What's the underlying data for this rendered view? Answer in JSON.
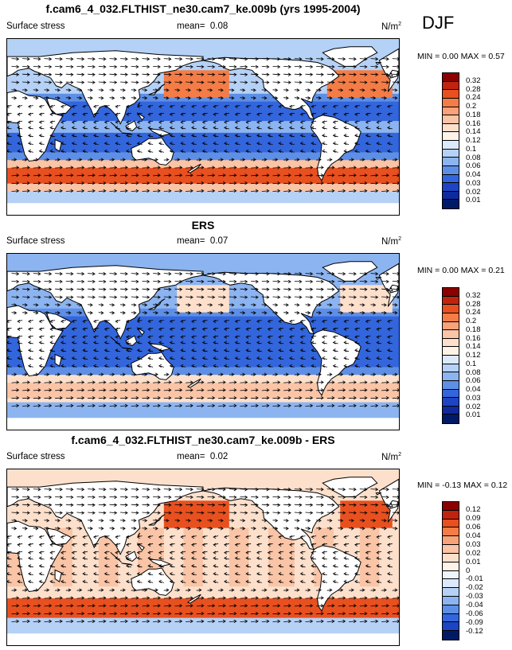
{
  "season": "DJF",
  "panels": [
    {
      "title": "f.cam6_4_032.FLTHIST_ne30.cam7_ke.009b (yrs 1995-2004)",
      "variable": "Surface stress",
      "mean_label": "mean=",
      "mean_value": "0.08",
      "units": "N/m",
      "units_exp": "2",
      "min_label": "MIN =",
      "min_value": "0.00",
      "max_label": "MAX =",
      "max_value": "0.57",
      "colorbar": {
        "labels": [
          "0.32",
          "0.28",
          "0.24",
          "0.2",
          "0.18",
          "0.16",
          "0.14",
          "0.12",
          "0.1",
          "0.08",
          "0.06",
          "0.04",
          "0.03",
          "0.02",
          "0.01"
        ],
        "colors": [
          "#8b0000",
          "#c0240e",
          "#e8501f",
          "#f47c46",
          "#f7a279",
          "#fac4a6",
          "#fde0cc",
          "#fdf3e8",
          "#dbe9fa",
          "#b5d1f6",
          "#8cb4f0",
          "#5e8fe6",
          "#3366dc",
          "#1d44c4",
          "#0e2a9e",
          "#001a66"
        ]
      }
    },
    {
      "title": "ERS",
      "variable": "Surface stress",
      "mean_label": "mean=",
      "mean_value": "0.07",
      "units": "N/m",
      "units_exp": "2",
      "min_label": "MIN =",
      "min_value": "0.00",
      "max_label": "MAX =",
      "max_value": "0.21",
      "colorbar": {
        "labels": [
          "0.32",
          "0.28",
          "0.24",
          "0.2",
          "0.18",
          "0.16",
          "0.14",
          "0.12",
          "0.1",
          "0.08",
          "0.06",
          "0.04",
          "0.03",
          "0.02",
          "0.01"
        ],
        "colors": [
          "#8b0000",
          "#c0240e",
          "#e8501f",
          "#f47c46",
          "#f7a279",
          "#fac4a6",
          "#fde0cc",
          "#fdf3e8",
          "#dbe9fa",
          "#b5d1f6",
          "#8cb4f0",
          "#5e8fe6",
          "#3366dc",
          "#1d44c4",
          "#0e2a9e",
          "#001a66"
        ]
      }
    },
    {
      "title": "f.cam6_4_032.FLTHIST_ne30.cam7_ke.009b - ERS",
      "variable": "Surface stress",
      "mean_label": "mean=",
      "mean_value": "0.02",
      "units": "N/m",
      "units_exp": "2",
      "min_label": "MIN =",
      "min_value": "-0.13",
      "max_label": "MAX =",
      "max_value": "0.12",
      "colorbar": {
        "labels": [
          "0.12",
          "0.09",
          "0.06",
          "0.04",
          "0.03",
          "0.02",
          "0.01",
          "0",
          "-0.01",
          "-0.02",
          "-0.03",
          "-0.04",
          "-0.06",
          "-0.09",
          "-0.12"
        ],
        "colors": [
          "#8b0000",
          "#c0240e",
          "#e8501f",
          "#f47c46",
          "#f7a279",
          "#fac4a6",
          "#fde0cc",
          "#fdf3e8",
          "#eef5fd",
          "#dbe9fa",
          "#b5d1f6",
          "#8cb4f0",
          "#5e8fe6",
          "#3366dc",
          "#1d44c4",
          "#001a66"
        ]
      }
    }
  ]
}
